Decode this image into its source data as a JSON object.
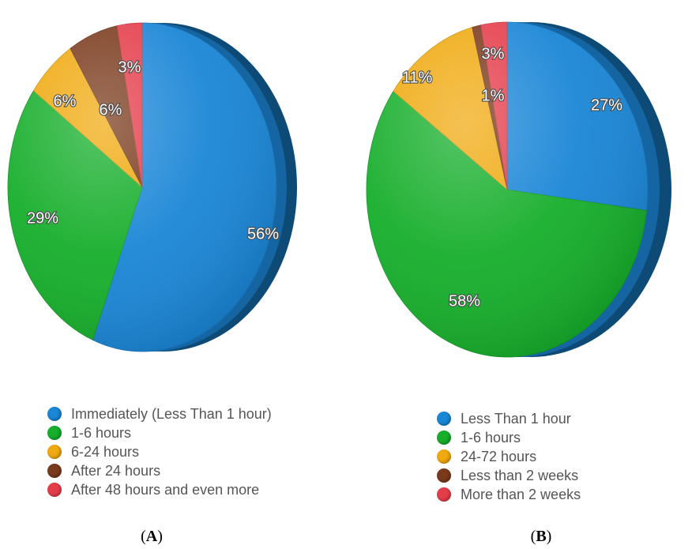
{
  "colors": {
    "blue": "#1a86d6",
    "green": "#16ae2b",
    "orange": "#f0a90e",
    "brown": "#7a3a1c",
    "red": "#e43d4a"
  },
  "chart_data": [
    {
      "type": "pie",
      "panel": "A",
      "caption": {
        "open": "(",
        "letter": "A",
        "close": ")"
      },
      "slices": [
        {
          "label": "Immediately (Less Than 1 hour)",
          "value": 56,
          "value_label": "56%",
          "color": "#1a86d6"
        },
        {
          "label": "1-6 hours",
          "value": 29,
          "value_label": "29%",
          "color": "#16ae2b"
        },
        {
          "label": "6-24 hours",
          "value": 6,
          "value_label": "6%",
          "color": "#f0a90e"
        },
        {
          "label": "After 24 hours",
          "value": 6,
          "value_label": "6%",
          "color": "#7a3a1c"
        },
        {
          "label": "After 48 hours and even more",
          "value": 3,
          "value_label": "3%",
          "color": "#e43d4a"
        }
      ],
      "legend_position": "bottom"
    },
    {
      "type": "pie",
      "panel": "B",
      "caption": {
        "open": "(",
        "letter": "B",
        "close": ")"
      },
      "slices": [
        {
          "label": "Less Than 1 hour",
          "value": 27,
          "value_label": "27%",
          "color": "#1a86d6"
        },
        {
          "label": "1-6 hours",
          "value": 58,
          "value_label": "58%",
          "color": "#16ae2b"
        },
        {
          "label": "24-72 hours",
          "value": 11,
          "value_label": "11%",
          "color": "#f0a90e"
        },
        {
          "label": "Less than 2 weeks",
          "value": 1,
          "value_label": "1%",
          "color": "#7a3a1c"
        },
        {
          "label": "More than 2 weeks",
          "value": 3,
          "value_label": "3%",
          "color": "#e43d4a"
        }
      ],
      "legend_position": "bottom"
    }
  ]
}
